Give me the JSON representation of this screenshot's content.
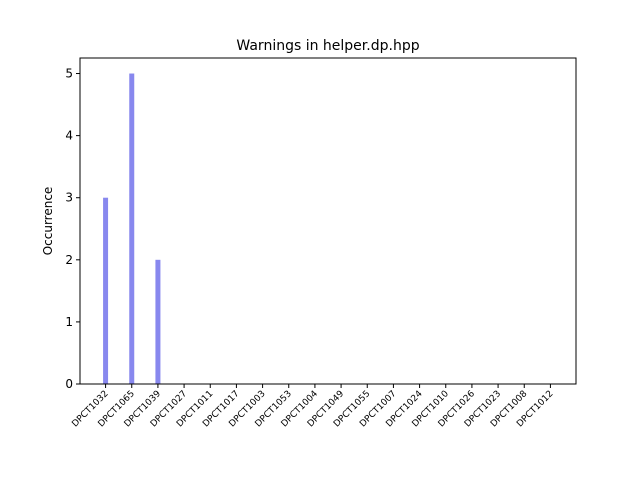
{
  "chart_data": {
    "type": "bar",
    "title": "Warnings in helper.dp.hpp",
    "xlabel": "",
    "ylabel": "Occurrence",
    "categories": [
      "DPCT1032",
      "DPCT1065",
      "DPCT1039",
      "DPCT1027",
      "DPCT1011",
      "DPCT1017",
      "DPCT1003",
      "DPCT1053",
      "DPCT1004",
      "DPCT1049",
      "DPCT1055",
      "DPCT1007",
      "DPCT1024",
      "DPCT1010",
      "DPCT1026",
      "DPCT1023",
      "DPCT1008",
      "DPCT1012"
    ],
    "values": [
      3,
      5,
      2,
      0,
      0,
      0,
      0,
      0,
      0,
      0,
      0,
      0,
      0,
      0,
      0,
      0,
      0,
      0
    ],
    "ylim": [
      0,
      5.25
    ],
    "yticks": [
      0,
      1,
      2,
      3,
      4,
      5
    ],
    "bar_color": "#8888ee",
    "grid": false,
    "legend": "none"
  }
}
